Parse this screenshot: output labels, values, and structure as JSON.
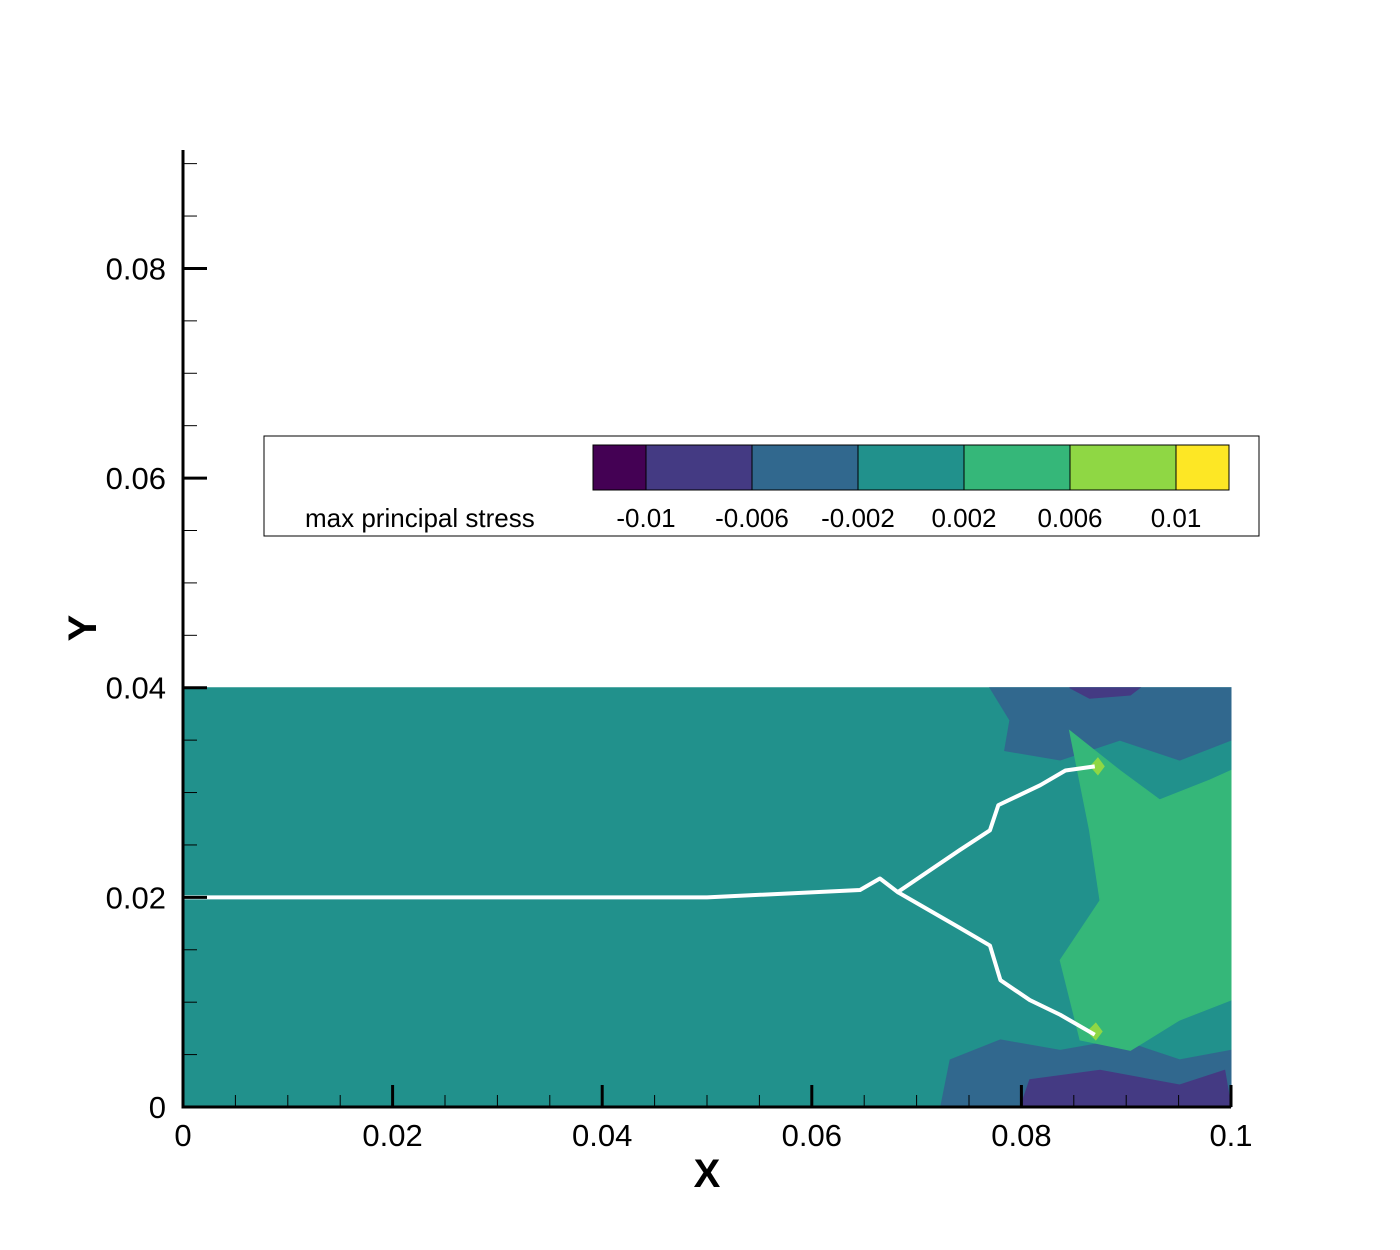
{
  "chart_data": {
    "type": "contour",
    "xlabel": "X",
    "ylabel": "Y",
    "xlim": [
      0,
      0.1
    ],
    "ylim": [
      0,
      0.0913
    ],
    "xticks": [
      0,
      0.02,
      0.04,
      0.06,
      0.08,
      0.1
    ],
    "yticks": [
      0,
      0.02,
      0.04,
      0.06,
      0.08
    ],
    "xminorticks": [
      0.005,
      0.01,
      0.015,
      0.025,
      0.03,
      0.035,
      0.045,
      0.05,
      0.055,
      0.065,
      0.07,
      0.075,
      0.085,
      0.09,
      0.095
    ],
    "yminorticks": [
      0.005,
      0.01,
      0.015,
      0.025,
      0.03,
      0.035,
      0.045,
      0.05,
      0.055,
      0.065,
      0.07,
      0.075,
      0.085,
      0.09
    ],
    "colorbar": {
      "title": "max principal stress",
      "levels": [
        -0.01,
        -0.006,
        -0.002,
        0.002,
        0.006,
        0.01
      ],
      "colors": [
        "#440154",
        "#443a83",
        "#31688e",
        "#21918c",
        "#35b779",
        "#8fd744",
        "#fde725"
      ]
    },
    "regions": [
      {
        "band": 3,
        "x": [
          0,
          0.1,
          0.1,
          0
        ],
        "y": [
          0,
          0,
          0.04,
          0.04
        ]
      },
      {
        "band": 2,
        "x": [
          0.077,
          0.0789,
          0.0784,
          0.0837,
          0.0894,
          0.0951,
          0.1,
          0.1
        ],
        "y": [
          0.04,
          0.0369,
          0.034,
          0.0331,
          0.035,
          0.0331,
          0.035,
          0.04
        ]
      },
      {
        "band": 2,
        "x": [
          0.0723,
          0.0732,
          0.078,
          0.0837,
          0.0894,
          0.0951,
          0.1,
          0.1
        ],
        "y": [
          0,
          0.0045,
          0.0064,
          0.0054,
          0.0064,
          0.0045,
          0.0054,
          0
        ]
      },
      {
        "band": 4,
        "x": [
          0.0846,
          0.0894,
          0.0932,
          0.098,
          0.1,
          0.1,
          0.0951,
          0.0904,
          0.0856,
          0.0837,
          0.0875,
          0.0865
        ],
        "y": [
          0.0359,
          0.0321,
          0.0293,
          0.0312,
          0.0321,
          0.0102,
          0.0083,
          0.0054,
          0.0064,
          0.014,
          0.0197,
          0.0264
        ]
      },
      {
        "band": 1,
        "x": [
          0.0846,
          0.0865,
          0.0904,
          0.0913
        ],
        "y": [
          0.04,
          0.039,
          0.0393,
          0.04
        ]
      },
      {
        "band": 1,
        "x": [
          0.0799,
          0.0808,
          0.0875,
          0.0951,
          0.0994,
          0.1
        ],
        "y": [
          0,
          0.0026,
          0.0035,
          0.0021,
          0.0035,
          0
        ]
      },
      {
        "band": 5,
        "x": [
          0.0866,
          0.0873,
          0.0879,
          0.0873
        ],
        "y": [
          0.0325,
          0.0333,
          0.0325,
          0.0317
        ]
      },
      {
        "band": 5,
        "x": [
          0.0863,
          0.0871,
          0.0877,
          0.0871
        ],
        "y": [
          0.0072,
          0.008,
          0.0072,
          0.0064
        ]
      }
    ],
    "cracks": [
      {
        "color": "#ffffff",
        "x": [
          0,
          0.05,
          0.0646,
          0.0665,
          0.0682,
          0.0741,
          0.077,
          0.0778,
          0.0818,
          0.0842,
          0.087
        ],
        "y": [
          0.02,
          0.02,
          0.0207,
          0.0218,
          0.0205,
          0.0245,
          0.0264,
          0.0288,
          0.0307,
          0.0321,
          0.0325
        ]
      },
      {
        "color": "#ffffff",
        "x": [
          0.0682,
          0.0741,
          0.077,
          0.078,
          0.0808,
          0.0837,
          0.087
        ],
        "y": [
          0.0205,
          0.0171,
          0.0154,
          0.0121,
          0.0102,
          0.0088,
          0.0069
        ]
      }
    ]
  }
}
